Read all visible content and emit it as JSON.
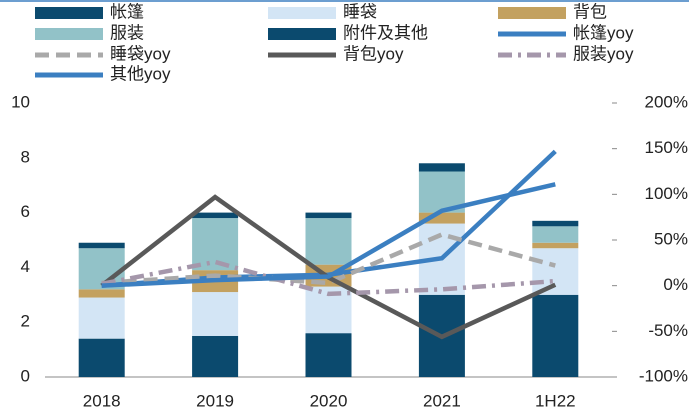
{
  "chart_data": {
    "type": "bar",
    "categories": [
      "2018",
      "2019",
      "2020",
      "2021",
      "1H22"
    ],
    "series": [
      {
        "name": "帐篷",
        "type": "bar",
        "color": "#0b4a6e",
        "values": [
          1.4,
          1.5,
          1.6,
          3.0,
          3.0
        ]
      },
      {
        "name": "睡袋",
        "type": "bar",
        "color": "#d3e5f5",
        "values": [
          1.5,
          1.6,
          1.7,
          2.6,
          1.7
        ]
      },
      {
        "name": "背包",
        "type": "bar",
        "color": "#c3a160",
        "values": [
          0.3,
          0.8,
          0.8,
          0.4,
          0.2
        ]
      },
      {
        "name": "服装",
        "type": "bar",
        "color": "#92c2c8",
        "values": [
          1.5,
          1.9,
          1.7,
          1.5,
          0.6
        ]
      },
      {
        "name": "附件及其他",
        "type": "bar",
        "color": "#0b4a6e",
        "values": [
          0.2,
          0.2,
          0.2,
          0.3,
          0.2
        ]
      },
      {
        "name": "帐篷yoy",
        "type": "line",
        "axis": "y2",
        "style": "solid",
        "color": "#3b7fc1",
        "values": [
          0,
          9,
          12,
          30,
          147
        ]
      },
      {
        "name": "睡袋yoy",
        "type": "line",
        "axis": "y2",
        "style": "dashed",
        "color": "#a9a9a9",
        "values": [
          3,
          11,
          3,
          56,
          22
        ]
      },
      {
        "name": "背包yoy",
        "type": "line",
        "axis": "y2",
        "style": "solid",
        "color": "#595959",
        "values": [
          0,
          97,
          9,
          -56,
          1
        ]
      },
      {
        "name": "服装yoy",
        "type": "line",
        "axis": "y2",
        "style": "dashdot",
        "color": "#a597ab",
        "values": [
          2,
          26,
          -9,
          -4,
          5
        ]
      },
      {
        "name": "其他yoy",
        "type": "line",
        "axis": "y2",
        "style": "solid",
        "color": "#3b7fc1",
        "values": [
          0,
          6,
          10,
          82,
          111
        ]
      }
    ],
    "ylim": [
      0,
      10
    ],
    "yticks": [
      0,
      2,
      4,
      6,
      8,
      10
    ],
    "y2lim": [
      -100,
      200
    ],
    "y2ticks": [
      {
        "value": -100,
        "label": "-100%"
      },
      {
        "value": -50,
        "label": "-50%"
      },
      {
        "value": 0,
        "label": "0%"
      },
      {
        "value": 50,
        "label": "50%"
      },
      {
        "value": 100,
        "label": "100%"
      },
      {
        "value": 150,
        "label": "150%"
      },
      {
        "value": 200,
        "label": "200%"
      }
    ],
    "legend": "top",
    "grid": false
  }
}
